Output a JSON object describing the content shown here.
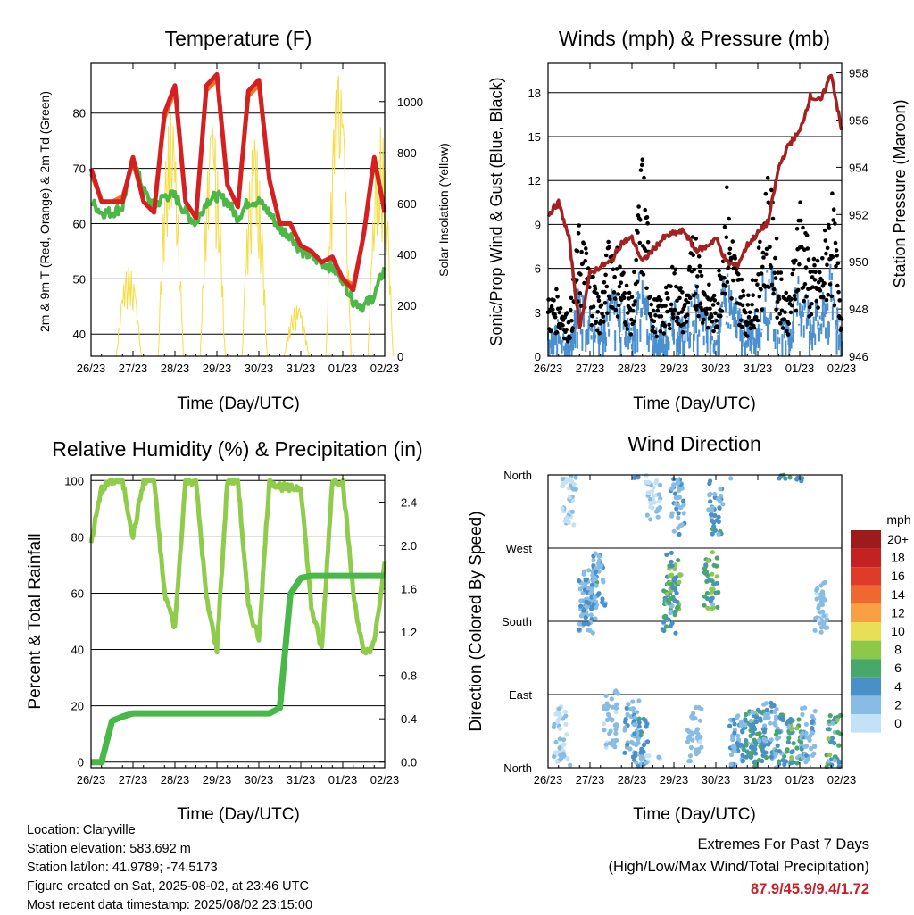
{
  "colors": {
    "t2m": "#d42020",
    "t9m": "#f07428",
    "td2m": "#4db848",
    "solar": "#f5dd48",
    "wind": "#4a90d0",
    "gust": "#000000",
    "pressure": "#a52020",
    "rh": "#8fcc4c",
    "precip": "#48b848",
    "extremes_text": "#c8202a"
  },
  "common": {
    "xlabel": "Time (Day/UTC)",
    "xticks": [
      "26/23",
      "27/23",
      "28/23",
      "29/23",
      "30/23",
      "31/23",
      "01/23",
      "02/23"
    ]
  },
  "titles": {
    "temperature": "Temperature (F)",
    "winds": "Winds (mph) & Pressure (mb)",
    "humidity": "Relative Humidity (%) & Precipitation (in)",
    "direction": "Wind Direction"
  },
  "axis_labels": {
    "temp_left": "2m & 9m T (Red, Orange) & 2m Td (Green)",
    "temp_right": "Solar Insolation (Yellow)",
    "wind_left": "Sonic/Prop Wind & Gust (Blue, Black)",
    "wind_right": "Station Pressure (Maroon)",
    "rh_left": "Percent & Total Rainfall",
    "dir_left": "Direction (Colored By Speed)"
  },
  "colorbar": {
    "unit": "mph",
    "labels": [
      "20+",
      "18",
      "16",
      "14",
      "12",
      "10",
      "8",
      "6",
      "4",
      "2",
      "0"
    ],
    "colors": [
      "#9e1b1b",
      "#c42222",
      "#de3b28",
      "#ef6830",
      "#f8a042",
      "#e8de58",
      "#8cc84a",
      "#48a86a",
      "#4a90c8",
      "#88bce4",
      "#c4e2f6"
    ]
  },
  "footer": {
    "location": "Location: Claryville",
    "elevation": "Station elevation: 583.692 m",
    "latlon": "Station lat/lon: 41.9789; -74.5173",
    "created": "Figure created on Sat, 2025-08-02, at 23:46 UTC",
    "recent": "Most recent data timestamp: 2025/08/02 23:15:00"
  },
  "extremes": {
    "title": "Extremes For Past 7 Days",
    "subtitle": "(High/Low/Max Wind/Total Precipitation)",
    "values": "87.9/45.9/9.4/1.72"
  },
  "chart_data": [
    {
      "type": "line",
      "title": "Temperature (F)",
      "xlabel": "Time (Day/UTC)",
      "ylabel": "2m & 9m T (Red, Orange) & 2m Td (Green)",
      "y2label": "Solar Insolation (Yellow)",
      "x": [
        0,
        0.25,
        0.5,
        0.75,
        1,
        1.25,
        1.5,
        1.75,
        2,
        2.25,
        2.5,
        2.75,
        3,
        3.25,
        3.5,
        3.75,
        4,
        4.25,
        4.5,
        4.75,
        5,
        5.25,
        5.5,
        5.75,
        6,
        6.25,
        6.5,
        6.75,
        7
      ],
      "ylim": [
        36,
        89
      ],
      "y2lim": [
        0,
        1150
      ],
      "yticks": [
        40,
        50,
        60,
        70,
        80
      ],
      "y2ticks": [
        0,
        200,
        400,
        600,
        800,
        1000
      ],
      "series": [
        {
          "name": "2m T",
          "values": [
            70,
            64,
            64,
            64,
            72,
            64,
            62,
            80,
            85,
            64,
            61,
            85,
            87,
            67,
            63,
            84,
            86,
            68,
            60,
            60,
            56,
            55,
            53,
            54,
            50,
            48,
            58,
            72,
            62
          ]
        },
        {
          "name": "9m T",
          "values": [
            69,
            64,
            64,
            65,
            71,
            64,
            62,
            79,
            84,
            64,
            61,
            84,
            86,
            67,
            63,
            83,
            85,
            68,
            60,
            60,
            56,
            55,
            53,
            54,
            50,
            49,
            58,
            71,
            62
          ]
        },
        {
          "name": "2m Td",
          "values": [
            64,
            62,
            62,
            63,
            72,
            66,
            63,
            65,
            65,
            62,
            60,
            64,
            65,
            64,
            61,
            64,
            64,
            62,
            59,
            58,
            55,
            54,
            53,
            52,
            50,
            46,
            45,
            47,
            52
          ]
        },
        {
          "name": "Solar Insolation",
          "axis": "right",
          "values": [
            0,
            0,
            0,
            0,
            350,
            0,
            0,
            0,
            950,
            0,
            0,
            0,
            900,
            0,
            0,
            0,
            850,
            0,
            0,
            0,
            200,
            0,
            0,
            0,
            1100,
            0,
            0,
            0,
            900
          ]
        }
      ]
    },
    {
      "type": "line",
      "title": "Winds (mph) & Pressure (mb)",
      "xlabel": "Time (Day/UTC)",
      "ylabel": "Sonic/Prop Wind & Gust (Blue, Black)",
      "y2label": "Station Pressure (Maroon)",
      "x": [
        0,
        0.25,
        0.5,
        0.75,
        1,
        1.25,
        1.5,
        1.75,
        2,
        2.25,
        2.5,
        2.75,
        3,
        3.25,
        3.5,
        3.75,
        4,
        4.25,
        4.5,
        4.75,
        5,
        5.25,
        5.5,
        5.75,
        6,
        6.25,
        6.5,
        6.75,
        7
      ],
      "ylim": [
        0,
        20
      ],
      "y2lim": [
        946,
        958.4
      ],
      "yticks": [
        0,
        3,
        6,
        9,
        12,
        15,
        18
      ],
      "y2ticks": [
        946,
        948,
        950,
        952,
        954,
        956,
        958
      ],
      "series": [
        {
          "name": "Wind",
          "values": [
            1.5,
            2,
            1,
            4,
            3,
            2,
            4,
            3,
            2,
            6,
            1.5,
            2,
            3,
            2,
            4,
            2.5,
            2,
            5,
            3,
            2,
            3,
            6,
            3,
            2,
            5,
            3,
            3,
            5,
            2
          ]
        },
        {
          "name": "Gust",
          "values": [
            3,
            3.5,
            2,
            7,
            5,
            3,
            7,
            5,
            3,
            11,
            3,
            3,
            5,
            3,
            7,
            4,
            3,
            9,
            5,
            3,
            5,
            10,
            5,
            3,
            9,
            5,
            5,
            9,
            3
          ]
        },
        {
          "name": "Pressure",
          "axis": "right",
          "values": [
            952,
            952.5,
            951,
            947.2,
            949.5,
            949.8,
            950,
            950.8,
            951,
            950,
            950.5,
            951,
            951.2,
            951.3,
            950.5,
            950.6,
            951,
            950,
            949.8,
            950.7,
            951.2,
            951.7,
            954,
            955,
            955.5,
            957,
            956.8,
            958,
            955.5
          ]
        }
      ]
    },
    {
      "type": "line",
      "title": "Relative Humidity (%) & Precipitation (in)",
      "xlabel": "Time (Day/UTC)",
      "ylabel": "Percent & Total Rainfall",
      "x": [
        0,
        0.25,
        0.5,
        0.75,
        1,
        1.25,
        1.5,
        1.75,
        2,
        2.25,
        2.5,
        2.75,
        3,
        3.25,
        3.5,
        3.75,
        4,
        4.25,
        4.5,
        4.75,
        5,
        5.25,
        5.5,
        5.75,
        6,
        6.25,
        6.5,
        6.75,
        7
      ],
      "ylim": [
        -2,
        102
      ],
      "y2lim": [
        -0.052,
        2.652
      ],
      "yticks": [
        0,
        20,
        40,
        60,
        80,
        100
      ],
      "y2ticks": [
        0.0,
        0.4,
        0.8,
        1.2,
        1.6,
        2.0,
        2.4
      ],
      "series": [
        {
          "name": "RH",
          "values": [
            78,
            97,
            100,
            100,
            80,
            100,
            100,
            60,
            48,
            100,
            100,
            58,
            40,
            100,
            100,
            55,
            44,
            100,
            98,
            97,
            98,
            55,
            40,
            100,
            100,
            60,
            38,
            42,
            70
          ]
        },
        {
          "name": "Total Precipitation",
          "axis": "right",
          "values": [
            0,
            0,
            0.38,
            0.42,
            0.45,
            0.45,
            0.45,
            0.45,
            0.45,
            0.45,
            0.45,
            0.45,
            0.45,
            0.45,
            0.45,
            0.45,
            0.45,
            0.45,
            0.5,
            1.55,
            1.7,
            1.72,
            1.72,
            1.72,
            1.72,
            1.72,
            1.72,
            1.72,
            1.72
          ]
        }
      ]
    },
    {
      "type": "scatter",
      "title": "Wind Direction",
      "xlabel": "Time (Day/UTC)",
      "ylabel": "Direction (Colored By Speed)",
      "ylim": [
        0,
        360
      ],
      "yticks": [
        0,
        90,
        180,
        270,
        360
      ],
      "ytick_labels": [
        "North",
        "East",
        "South",
        "West",
        "North"
      ],
      "colorbar_unit": "mph",
      "points": [
        {
          "x": 0.3,
          "y": 40,
          "speed": 1
        },
        {
          "x": 0.5,
          "y": 330,
          "speed": 1
        },
        {
          "x": 0.9,
          "y": 200,
          "speed": 3
        },
        {
          "x": 1.0,
          "y": 210,
          "speed": 4
        },
        {
          "x": 1.2,
          "y": 230,
          "speed": 3
        },
        {
          "x": 1.5,
          "y": 60,
          "speed": 2
        },
        {
          "x": 2.0,
          "y": 50,
          "speed": 3
        },
        {
          "x": 2.2,
          "y": 30,
          "speed": 4
        },
        {
          "x": 2.5,
          "y": 340,
          "speed": 1
        },
        {
          "x": 2.9,
          "y": 200,
          "speed": 5
        },
        {
          "x": 3.0,
          "y": 230,
          "speed": 7
        },
        {
          "x": 3.1,
          "y": 320,
          "speed": 3
        },
        {
          "x": 3.5,
          "y": 40,
          "speed": 2
        },
        {
          "x": 3.9,
          "y": 230,
          "speed": 7
        },
        {
          "x": 4.0,
          "y": 320,
          "speed": 4
        },
        {
          "x": 4.5,
          "y": 30,
          "speed": 3
        },
        {
          "x": 4.8,
          "y": 35,
          "speed": 6
        },
        {
          "x": 5.0,
          "y": 40,
          "speed": 5
        },
        {
          "x": 5.3,
          "y": 45,
          "speed": 4
        },
        {
          "x": 5.6,
          "y": 30,
          "speed": 5
        },
        {
          "x": 5.9,
          "y": 25,
          "speed": 6
        },
        {
          "x": 6.2,
          "y": 40,
          "speed": 3
        },
        {
          "x": 6.5,
          "y": 200,
          "speed": 2
        },
        {
          "x": 6.8,
          "y": 30,
          "speed": 6
        }
      ]
    }
  ]
}
